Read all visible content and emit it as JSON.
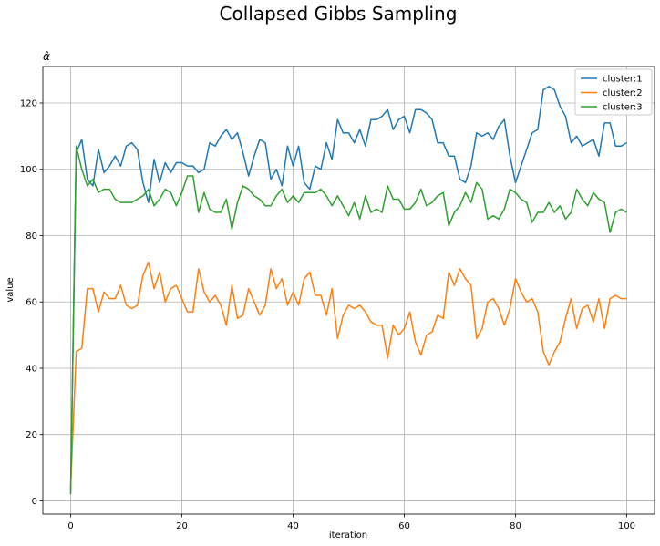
{
  "figure": {
    "suptitle": "Collapsed Gibbs Sampling"
  },
  "chart_data": {
    "type": "line",
    "title": "α̂",
    "xlabel": "iteration",
    "ylabel": "value",
    "xlim": [
      -5,
      105
    ],
    "ylim": [
      -4,
      131
    ],
    "xticks": [
      0,
      20,
      40,
      60,
      80,
      100
    ],
    "yticks": [
      0,
      20,
      40,
      60,
      80,
      100,
      120
    ],
    "grid": true,
    "legend": "top-right",
    "x": [
      0,
      1,
      2,
      3,
      4,
      5,
      6,
      7,
      8,
      9,
      10,
      11,
      12,
      13,
      14,
      15,
      16,
      17,
      18,
      19,
      20,
      21,
      22,
      23,
      24,
      25,
      26,
      27,
      28,
      29,
      30,
      31,
      32,
      33,
      34,
      35,
      36,
      37,
      38,
      39,
      40,
      41,
      42,
      43,
      44,
      45,
      46,
      47,
      48,
      49,
      50,
      51,
      52,
      53,
      54,
      55,
      56,
      57,
      58,
      59,
      60,
      61,
      62,
      63,
      64,
      65,
      66,
      67,
      68,
      69,
      70,
      71,
      72,
      73,
      74,
      75,
      76,
      77,
      78,
      79,
      80,
      81,
      82,
      83,
      84,
      85,
      86,
      87,
      88,
      89,
      90,
      91,
      92,
      93,
      94,
      95,
      96,
      97,
      98,
      99,
      100
    ],
    "series": [
      {
        "name": "cluster:1",
        "color": "#1f77b4",
        "values": [
          3,
          105,
          109,
          97,
          95,
          106,
          99,
          101,
          104,
          101,
          107,
          108,
          106,
          96,
          90,
          103,
          96,
          102,
          99,
          102,
          102,
          101,
          101,
          99,
          100,
          108,
          107,
          110,
          112,
          109,
          111,
          105,
          98,
          104,
          109,
          108,
          97,
          100,
          95,
          107,
          101,
          107,
          96,
          94,
          101,
          100,
          108,
          103,
          115,
          111,
          111,
          108,
          112,
          107,
          115,
          115,
          116,
          118,
          112,
          115,
          116,
          111,
          118,
          118,
          117,
          115,
          108,
          108,
          104,
          104,
          97,
          96,
          101,
          111,
          110,
          111,
          109,
          113,
          115,
          104,
          96,
          101,
          106,
          111,
          112,
          124,
          125,
          124,
          119,
          116,
          108,
          110,
          107,
          108,
          109,
          104,
          114,
          114,
          107,
          107,
          108
        ]
      },
      {
        "name": "cluster:2",
        "color": "#ff7f0e",
        "values": [
          4,
          45,
          46,
          64,
          64,
          57,
          63,
          61,
          61,
          65,
          59,
          58,
          59,
          68,
          72,
          64,
          69,
          60,
          64,
          65,
          61,
          57,
          57,
          70,
          63,
          60,
          62,
          59,
          53,
          65,
          55,
          56,
          64,
          60,
          56,
          59,
          70,
          64,
          67,
          59,
          63,
          59,
          67,
          69,
          62,
          62,
          56,
          64,
          49,
          56,
          59,
          58,
          59,
          57,
          54,
          53,
          53,
          43,
          53,
          50,
          52,
          57,
          48,
          44,
          50,
          51,
          56,
          55,
          69,
          65,
          70,
          67,
          65,
          49,
          52,
          60,
          61,
          58,
          53,
          58,
          67,
          63,
          60,
          61,
          57,
          45,
          41,
          45,
          48,
          55,
          61,
          52,
          58,
          59,
          54,
          61,
          52,
          61,
          62,
          61,
          61
        ]
      },
      {
        "name": "cluster:3",
        "color": "#2ca02c",
        "values": [
          2,
          107,
          100,
          95,
          97,
          93,
          94,
          94,
          91,
          90,
          90,
          90,
          91,
          92,
          94,
          89,
          91,
          94,
          93,
          89,
          93,
          98,
          98,
          87,
          93,
          88,
          87,
          87,
          91,
          82,
          90,
          95,
          94,
          92,
          91,
          89,
          89,
          92,
          94,
          90,
          92,
          90,
          93,
          93,
          93,
          94,
          92,
          89,
          92,
          89,
          86,
          90,
          85,
          92,
          87,
          88,
          87,
          95,
          91,
          91,
          88,
          88,
          90,
          94,
          89,
          90,
          92,
          93,
          83,
          87,
          89,
          93,
          90,
          96,
          94,
          85,
          86,
          85,
          88,
          94,
          93,
          91,
          90,
          84,
          87,
          87,
          90,
          87,
          89,
          85,
          87,
          94,
          91,
          89,
          93,
          91,
          90,
          81,
          87,
          88,
          87
        ]
      }
    ]
  }
}
